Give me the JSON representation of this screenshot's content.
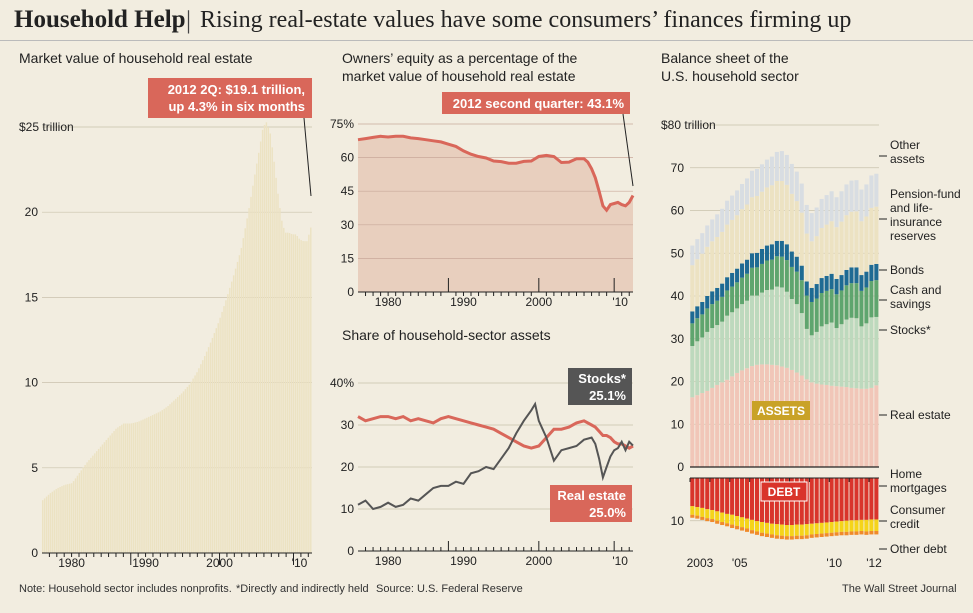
{
  "header": {
    "title": "Household Help",
    "separator": "|",
    "subtitle": "Rising real-estate values have some consumers’ finances firming up"
  },
  "colors": {
    "background": "#f2ede0",
    "red_line": "#d9675a",
    "callout_red": "#d9675a",
    "callout_dark": "#555555",
    "real_estate_area": "#e8cfbe",
    "bars_cream": "#ece2c2"
  },
  "panel_market_value": {
    "title": "Market value of household real estate",
    "callout_line1": "2012 2Q: $19.1 trillion,",
    "callout_line2": "up 4.3% in six months",
    "unit_label": "$25 trillion"
  },
  "panel_equity": {
    "title_line1": "Owners’ equity as a percentage of the",
    "title_line2": "market value of household real estate",
    "callout": "2012 second quarter: 43.1%"
  },
  "panel_share": {
    "title": "Share of household-sector assets",
    "stocks_callout_line1": "Stocks*",
    "stocks_callout_line2": "25.1%",
    "re_callout_line1": "Real estate",
    "re_callout_line2": "25.0%"
  },
  "panel_balance": {
    "title_line1": "Balance sheet of the",
    "title_line2": "U.S. household sector",
    "assets_label": "ASSETS",
    "debt_label": "DEBT",
    "labels": {
      "other_assets_1": "Other",
      "other_assets_2": "assets",
      "pension_1": "Pension-fund",
      "pension_2": "and life-",
      "pension_3": "insurance",
      "pension_4": "reserves",
      "bonds": "Bonds",
      "cash_1": "Cash and",
      "cash_2": "savings",
      "stocks": "Stocks*",
      "real_estate": "Real estate",
      "home_1": "Home",
      "home_2": "mortgages",
      "consumer_1": "Consumer",
      "consumer_2": "credit",
      "other_debt": "Other debt"
    }
  },
  "footer": {
    "note": "Note: Household sector includes nonprofits.",
    "asterisk": "*Directly and indirectly held",
    "source": "Source: U.S. Federal Reserve",
    "credit": "The Wall Street Journal"
  },
  "chart_data": [
    {
      "id": "market_value",
      "type": "bar",
      "title": "Market value of household real estate",
      "ylabel": "$ trillion",
      "ylim": [
        0,
        25
      ],
      "yticks": [
        0,
        5,
        10,
        15,
        20,
        25
      ],
      "ytick_labels": [
        "0",
        "5",
        "10",
        "15",
        "20",
        "$25 trillion"
      ],
      "xlim": [
        1976,
        2012.5
      ],
      "xtick_labels": [
        "1980",
        "1990",
        "2000",
        "'10"
      ],
      "x": [
        1976.0,
        1977.0,
        1978.0,
        1979.0,
        1980.0,
        1981.0,
        1982.0,
        1983.0,
        1984.0,
        1985.0,
        1986.0,
        1987.0,
        1988.0,
        1989.0,
        1990.0,
        1991.0,
        1992.0,
        1993.0,
        1994.0,
        1995.0,
        1996.0,
        1997.0,
        1998.0,
        1999.0,
        2000.0,
        2001.0,
        2002.0,
        2003.0,
        2004.0,
        2005.0,
        2005.5,
        2006.0,
        2006.5,
        2007.0,
        2007.5,
        2008.0,
        2008.5,
        2009.0,
        2009.5,
        2010.0,
        2010.5,
        2011.0,
        2011.5,
        2012.0,
        2012.5
      ],
      "values": [
        3.1,
        3.5,
        3.8,
        4.0,
        4.1,
        4.7,
        5.3,
        5.8,
        6.3,
        6.8,
        7.3,
        7.6,
        7.6,
        7.7,
        7.9,
        8.1,
        8.3,
        8.6,
        9.0,
        9.4,
        9.9,
        10.6,
        11.5,
        12.5,
        13.6,
        14.9,
        16.3,
        17.8,
        20.0,
        22.5,
        23.7,
        25.0,
        25.3,
        24.6,
        23.0,
        21.2,
        19.6,
        18.8,
        18.8,
        18.7,
        18.7,
        18.4,
        18.3,
        18.3,
        19.1
      ]
    },
    {
      "id": "owners_equity",
      "type": "area",
      "title": "Owners’ equity as a percentage of the market value of household real estate",
      "ylim": [
        0,
        75
      ],
      "yticks": [
        0,
        15,
        30,
        45,
        60,
        75
      ],
      "ytick_labels": [
        "0",
        "15",
        "30",
        "45",
        "60",
        "75%"
      ],
      "xlim": [
        1976,
        2012.5
      ],
      "xtick_labels": [
        "1980",
        "1990",
        "2000",
        "'10"
      ],
      "x": [
        1976.0,
        1977.0,
        1978.0,
        1979.0,
        1980.0,
        1981.0,
        1982.0,
        1983.0,
        1984.0,
        1985.0,
        1986.0,
        1987.0,
        1988.0,
        1989.0,
        1990.0,
        1991.0,
        1992.0,
        1993.0,
        1994.0,
        1995.0,
        1996.0,
        1997.0,
        1998.0,
        1999.0,
        2000.0,
        2001.0,
        2002.0,
        2003.0,
        2004.0,
        2005.0,
        2006.0,
        2006.5,
        2007.0,
        2007.5,
        2008.0,
        2008.5,
        2009.0,
        2009.5,
        2010.0,
        2010.5,
        2011.0,
        2011.5,
        2012.0,
        2012.5
      ],
      "values": [
        68.0,
        68.5,
        69.0,
        69.5,
        69.2,
        69.5,
        69.5,
        68.8,
        68.5,
        68.0,
        67.5,
        67.0,
        66.0,
        65.0,
        63.0,
        61.5,
        60.5,
        59.8,
        58.5,
        58.2,
        57.5,
        57.5,
        58.3,
        58.5,
        60.5,
        61.0,
        60.5,
        57.8,
        58.0,
        59.5,
        59.5,
        58.0,
        55.0,
        51.0,
        45.0,
        38.5,
        36.5,
        39.0,
        39.5,
        40.0,
        39.0,
        38.5,
        40.0,
        43.1
      ],
      "callout": "2012 second quarter: 43.1%"
    },
    {
      "id": "share_assets",
      "type": "line",
      "title": "Share of household-sector assets",
      "ylim": [
        0,
        40
      ],
      "yticks": [
        0,
        10,
        20,
        30,
        40
      ],
      "ytick_labels": [
        "0",
        "10",
        "20",
        "30",
        "40%"
      ],
      "xlim": [
        1976,
        2012.5
      ],
      "xtick_labels": [
        "1980",
        "1990",
        "2000",
        "'10"
      ],
      "series": [
        {
          "name": "Real estate",
          "x": [
            1976.0,
            1977.0,
            1978.0,
            1979.0,
            1980.0,
            1981.0,
            1982.0,
            1983.0,
            1984.0,
            1985.0,
            1986.0,
            1987.0,
            1988.0,
            1989.0,
            1990.0,
            1991.0,
            1992.0,
            1993.0,
            1994.0,
            1995.0,
            1996.0,
            1997.0,
            1998.0,
            1999.0,
            2000.0,
            2001.0,
            2002.0,
            2003.0,
            2004.0,
            2005.0,
            2006.0,
            2007.0,
            2007.5,
            2008.0,
            2008.5,
            2009.0,
            2009.5,
            2010.0,
            2010.5,
            2011.0,
            2011.5,
            2012.0,
            2012.5
          ],
          "values": [
            32.0,
            31.0,
            31.5,
            32.0,
            32.0,
            31.5,
            32.0,
            31.0,
            31.5,
            31.0,
            30.5,
            31.5,
            32.0,
            31.5,
            31.0,
            30.5,
            30.0,
            29.5,
            29.0,
            28.0,
            27.0,
            26.0,
            25.0,
            24.5,
            25.0,
            27.0,
            29.0,
            29.0,
            29.5,
            30.5,
            31.0,
            30.0,
            29.5,
            28.5,
            27.5,
            27.5,
            27.0,
            26.0,
            25.5,
            25.5,
            25.0,
            24.5,
            25.0
          ]
        },
        {
          "name": "Stocks*",
          "x": [
            1976.0,
            1977.0,
            1978.0,
            1979.0,
            1980.0,
            1981.0,
            1982.0,
            1983.0,
            1984.0,
            1985.0,
            1986.0,
            1987.0,
            1988.0,
            1989.0,
            1990.0,
            1991.0,
            1992.0,
            1993.0,
            1994.0,
            1995.0,
            1996.0,
            1997.0,
            1998.0,
            1999.0,
            1999.5,
            2000.0,
            2001.0,
            2002.0,
            2003.0,
            2004.0,
            2005.0,
            2006.0,
            2007.0,
            2007.5,
            2008.0,
            2008.5,
            2009.0,
            2009.5,
            2010.0,
            2010.5,
            2011.0,
            2011.5,
            2012.0,
            2012.5
          ],
          "values": [
            11.0,
            12.0,
            10.0,
            10.5,
            11.5,
            10.5,
            11.0,
            12.5,
            12.0,
            13.5,
            15.0,
            15.5,
            15.5,
            16.5,
            16.0,
            18.5,
            19.0,
            20.0,
            19.5,
            22.0,
            24.5,
            28.0,
            31.0,
            33.5,
            35.0,
            31.0,
            27.0,
            21.5,
            24.0,
            24.5,
            25.0,
            26.5,
            27.0,
            25.5,
            22.0,
            17.5,
            20.0,
            22.5,
            24.0,
            24.5,
            26.0,
            24.0,
            26.0,
            25.1
          ]
        }
      ]
    },
    {
      "id": "balance_sheet",
      "type": "bar",
      "title": "Balance sheet of the U.S. household sector",
      "ylabel": "$ trillion",
      "ylim": [
        -20,
        80
      ],
      "yticks": [
        0,
        10,
        20,
        30,
        40,
        50,
        60,
        70,
        80
      ],
      "ytick_labels": [
        "0",
        "10",
        "20",
        "30",
        "40",
        "50",
        "60",
        "70",
        "$80 trillion"
      ],
      "debt_ytick_labels": [
        "10"
      ],
      "xtick_labels": [
        "2003",
        "'05",
        "'10",
        "'12"
      ],
      "categories": [
        "2003Q1",
        "2003Q2",
        "2003Q3",
        "2003Q4",
        "2004Q1",
        "2004Q2",
        "2004Q3",
        "2004Q4",
        "2005Q1",
        "2005Q2",
        "2005Q3",
        "2005Q4",
        "2006Q1",
        "2006Q2",
        "2006Q3",
        "2006Q4",
        "2007Q1",
        "2007Q2",
        "2007Q3",
        "2007Q4",
        "2008Q1",
        "2008Q2",
        "2008Q3",
        "2008Q4",
        "2009Q1",
        "2009Q2",
        "2009Q3",
        "2009Q4",
        "2010Q1",
        "2010Q2",
        "2010Q3",
        "2010Q4",
        "2011Q1",
        "2011Q2",
        "2011Q3",
        "2011Q4",
        "2012Q1",
        "2012Q2"
      ],
      "asset_series": [
        {
          "name": "Real estate",
          "values": [
            16.3,
            16.8,
            17.3,
            17.8,
            18.5,
            19.2,
            19.8,
            20.4,
            21.2,
            22.0,
            22.6,
            23.1,
            23.6,
            23.9,
            24.0,
            24.0,
            23.9,
            23.8,
            23.5,
            23.2,
            22.7,
            22.1,
            21.4,
            20.5,
            19.8,
            19.5,
            19.3,
            19.2,
            19.0,
            18.9,
            18.8,
            18.7,
            18.5,
            18.4,
            18.3,
            18.3,
            18.5,
            19.1
          ]
        },
        {
          "name": "Stocks*",
          "values": [
            12.0,
            12.6,
            13.0,
            13.8,
            14.0,
            14.0,
            14.2,
            15.0,
            15.0,
            15.1,
            15.5,
            15.8,
            16.5,
            16.2,
            16.8,
            17.4,
            17.6,
            18.4,
            18.5,
            17.8,
            16.6,
            16.0,
            14.6,
            11.8,
            11.0,
            12.1,
            13.6,
            14.2,
            14.8,
            13.6,
            14.6,
            15.8,
            16.4,
            16.4,
            14.6,
            15.3,
            16.5,
            16.0
          ]
        },
        {
          "name": "Cash and savings",
          "values": [
            5.3,
            5.4,
            5.4,
            5.5,
            5.6,
            5.7,
            5.8,
            5.9,
            6.0,
            6.1,
            6.2,
            6.3,
            6.5,
            6.6,
            6.7,
            6.9,
            7.0,
            7.1,
            7.2,
            7.4,
            7.5,
            7.6,
            7.7,
            7.8,
            7.8,
            7.8,
            7.8,
            7.8,
            7.8,
            7.9,
            7.9,
            8.0,
            8.1,
            8.2,
            8.3,
            8.4,
            8.5,
            8.6
          ]
        },
        {
          "name": "Bonds",
          "values": [
            2.8,
            2.8,
            2.9,
            2.9,
            3.0,
            3.0,
            3.1,
            3.1,
            3.2,
            3.2,
            3.3,
            3.3,
            3.4,
            3.4,
            3.5,
            3.5,
            3.6,
            3.6,
            3.7,
            3.7,
            3.6,
            3.5,
            3.4,
            3.3,
            3.3,
            3.4,
            3.5,
            3.5,
            3.6,
            3.6,
            3.6,
            3.6,
            3.7,
            3.7,
            3.7,
            3.7,
            3.8,
            3.8
          ]
        },
        {
          "name": "Pension-fund and life-insurance reserves",
          "values": [
            10.8,
            11.0,
            11.3,
            11.5,
            11.7,
            11.9,
            12.1,
            12.3,
            12.4,
            12.5,
            12.7,
            12.9,
            13.1,
            13.3,
            13.4,
            13.6,
            13.8,
            14.0,
            14.0,
            13.9,
            13.5,
            13.0,
            12.4,
            11.2,
            10.9,
            11.2,
            11.7,
            12.0,
            12.3,
            12.1,
            12.5,
            12.8,
            13.0,
            13.1,
            12.6,
            12.9,
            13.3,
            13.4
          ]
        },
        {
          "name": "Other assets",
          "values": [
            4.6,
            4.7,
            4.8,
            5.0,
            5.1,
            5.3,
            5.4,
            5.6,
            5.7,
            5.8,
            5.9,
            6.1,
            6.2,
            6.3,
            6.4,
            6.5,
            6.7,
            6.8,
            7.0,
            7.0,
            7.0,
            6.9,
            6.8,
            6.7,
            6.6,
            6.7,
            6.8,
            6.9,
            7.0,
            7.0,
            7.1,
            7.2,
            7.3,
            7.3,
            7.4,
            7.5,
            7.6,
            7.7
          ]
        }
      ],
      "debt_series": [
        {
          "name": "Home mortgages",
          "values": [
            6.6,
            6.8,
            7.0,
            7.3,
            7.5,
            7.8,
            8.1,
            8.4,
            8.6,
            8.9,
            9.2,
            9.5,
            9.8,
            10.1,
            10.3,
            10.5,
            10.7,
            10.8,
            10.9,
            11.0,
            11.0,
            10.9,
            10.9,
            10.8,
            10.7,
            10.6,
            10.5,
            10.4,
            10.3,
            10.2,
            10.1,
            10.0,
            9.9,
            9.9,
            9.8,
            9.8,
            9.7,
            9.7
          ]
        },
        {
          "name": "Consumer credit",
          "values": [
            2.0,
            2.0,
            2.1,
            2.1,
            2.1,
            2.2,
            2.2,
            2.2,
            2.3,
            2.3,
            2.3,
            2.3,
            2.4,
            2.4,
            2.5,
            2.5,
            2.5,
            2.6,
            2.6,
            2.6,
            2.6,
            2.6,
            2.6,
            2.6,
            2.5,
            2.5,
            2.5,
            2.5,
            2.5,
            2.5,
            2.5,
            2.6,
            2.6,
            2.6,
            2.6,
            2.7,
            2.7,
            2.7
          ]
        },
        {
          "name": "Other debt",
          "values": [
            0.7,
            0.7,
            0.7,
            0.7,
            0.7,
            0.7,
            0.7,
            0.7,
            0.8,
            0.8,
            0.8,
            0.8,
            0.8,
            0.8,
            0.8,
            0.8,
            0.8,
            0.8,
            0.8,
            0.8,
            0.8,
            0.8,
            0.8,
            0.8,
            0.8,
            0.8,
            0.8,
            0.8,
            0.8,
            0.8,
            0.8,
            0.8,
            0.8,
            0.8,
            0.8,
            0.8,
            0.8,
            0.8
          ]
        }
      ]
    }
  ]
}
